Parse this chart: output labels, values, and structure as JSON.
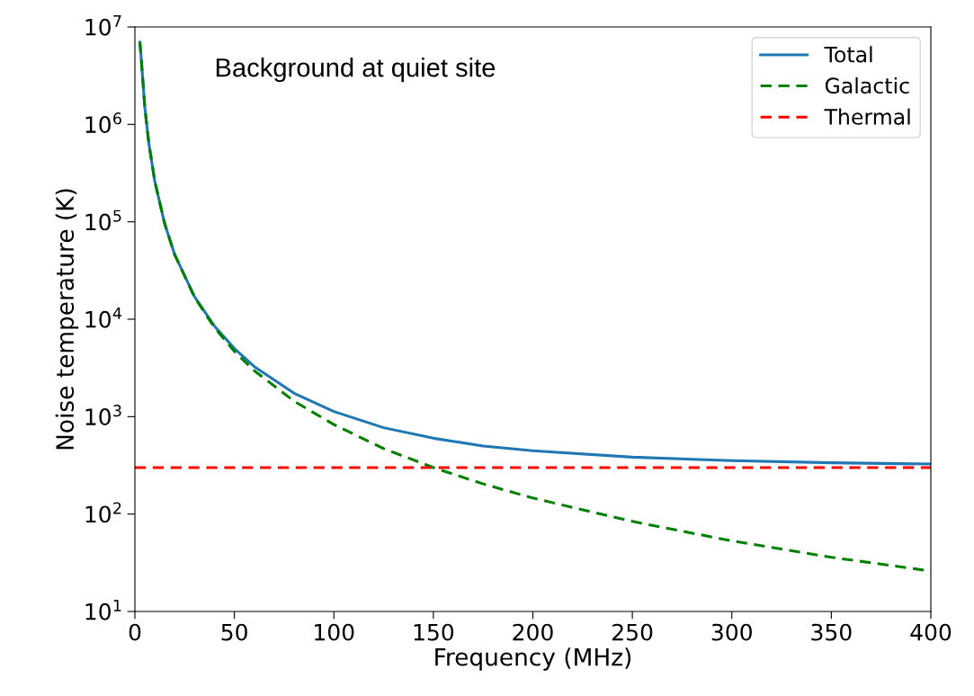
{
  "chart_data": {
    "type": "line",
    "xlabel": "Frequency (MHz)",
    "ylabel": "Noise temperature (K)",
    "annotations": [
      "Background at quiet site"
    ],
    "log": "y",
    "xlim": [
      0,
      400
    ],
    "ylim": [
      10,
      10000000
    ],
    "xticks": [
      0,
      50,
      100,
      150,
      200,
      250,
      300,
      350,
      400
    ],
    "yticks": [
      {
        "value": 10,
        "label": "10$^{1}$"
      },
      {
        "value": 100,
        "label": "10$^{2}$"
      },
      {
        "value": 1000,
        "label": "10$^{3}$"
      },
      {
        "value": 10000,
        "label": "10$^{4}$"
      },
      {
        "value": 100000,
        "label": "10$^{5}$"
      },
      {
        "value": 1000000,
        "label": "10$^{6}$"
      },
      {
        "value": 10000000,
        "label": "10$^{7}$"
      }
    ],
    "grid": false,
    "legend": "top right",
    "marker": "none",
    "series": [
      {
        "name": "Total",
        "color": "#1f77b4",
        "line_style": "solid",
        "x": [
          2.5,
          3,
          5,
          7,
          10,
          15,
          20,
          30,
          40,
          50,
          60,
          80,
          100,
          125,
          150,
          175,
          200,
          250,
          300,
          350,
          400
        ],
        "values": [
          7000000,
          5300000,
          1480000,
          640000,
          260000,
          95000,
          46000,
          17000,
          8500,
          5000,
          3260,
          1740,
          1130,
          770,
          600,
          500,
          446,
          384,
          353,
          336,
          326
        ]
      },
      {
        "name": "Galactic",
        "color": "#008000",
        "line_style": "dashed",
        "x": [
          2.5,
          3,
          5,
          7,
          10,
          15,
          20,
          30,
          40,
          50,
          60,
          80,
          100,
          125,
          150,
          175,
          200,
          250,
          300,
          350,
          400
        ],
        "values": [
          7000000,
          5300000,
          1480000,
          640000,
          260000,
          95000,
          46000,
          16800,
          8200,
          4680,
          2960,
          1440,
          830,
          470,
          300,
          204,
          146,
          84,
          53,
          36,
          26
        ]
      },
      {
        "name": "Thermal",
        "color": "#ff0000",
        "line_style": "dashed",
        "x": [
          0,
          400
        ],
        "values": [
          300,
          300
        ]
      }
    ]
  }
}
